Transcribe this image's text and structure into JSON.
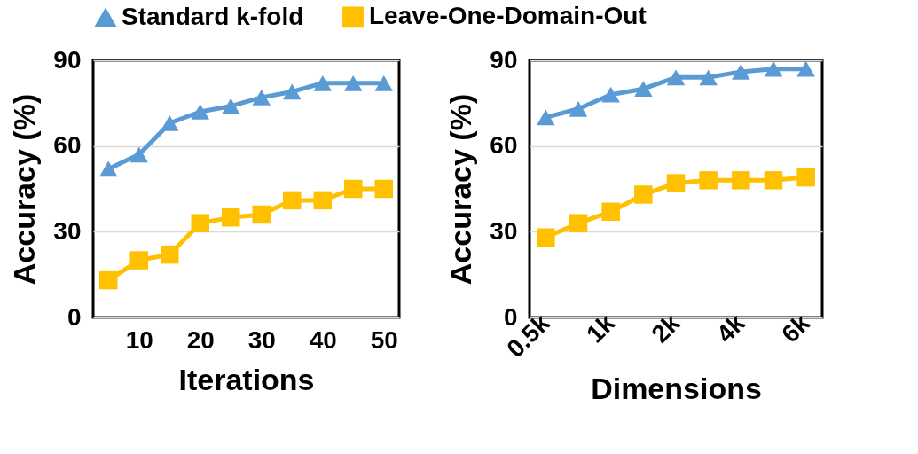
{
  "chart_data": [
    {
      "type": "line",
      "xlabel": "Iterations",
      "ylabel": "Accuracy (%)",
      "x": [
        5,
        10,
        15,
        20,
        25,
        30,
        35,
        40,
        45,
        50
      ],
      "xlim": [
        2.5,
        52.5
      ],
      "xticks": [
        10,
        20,
        30,
        40,
        50
      ],
      "ylim": [
        0,
        90
      ],
      "yticks": [
        0,
        30,
        60,
        90
      ],
      "grid": "y",
      "legend": "top",
      "series": [
        {
          "name": "Standard k-fold",
          "color": "#5b9bd5",
          "marker": "triangle",
          "values": [
            52,
            57,
            68,
            72,
            74,
            77,
            79,
            82,
            82,
            82
          ]
        },
        {
          "name": "Leave-One-Domain-Out",
          "color": "#ffc000",
          "marker": "square",
          "values": [
            13,
            20,
            22,
            33,
            35,
            36,
            41,
            41,
            45,
            45
          ]
        }
      ]
    },
    {
      "type": "line",
      "xlabel": "Dimensions",
      "ylabel": "Accuracy (%)",
      "categories": [
        "0.5k",
        null,
        "1k",
        null,
        "2k",
        null,
        "4k",
        null,
        "6k"
      ],
      "ylim": [
        0,
        90
      ],
      "yticks": [
        0,
        30,
        60,
        90
      ],
      "grid": "y",
      "legend": "top",
      "series": [
        {
          "name": "Standard k-fold",
          "color": "#5b9bd5",
          "marker": "triangle",
          "values": [
            70,
            73,
            78,
            80,
            84,
            84,
            86,
            87,
            87
          ]
        },
        {
          "name": "Leave-One-Domain-Out",
          "color": "#ffc000",
          "marker": "square",
          "values": [
            28,
            33,
            37,
            43,
            47,
            48,
            48,
            48,
            49
          ]
        }
      ]
    }
  ]
}
